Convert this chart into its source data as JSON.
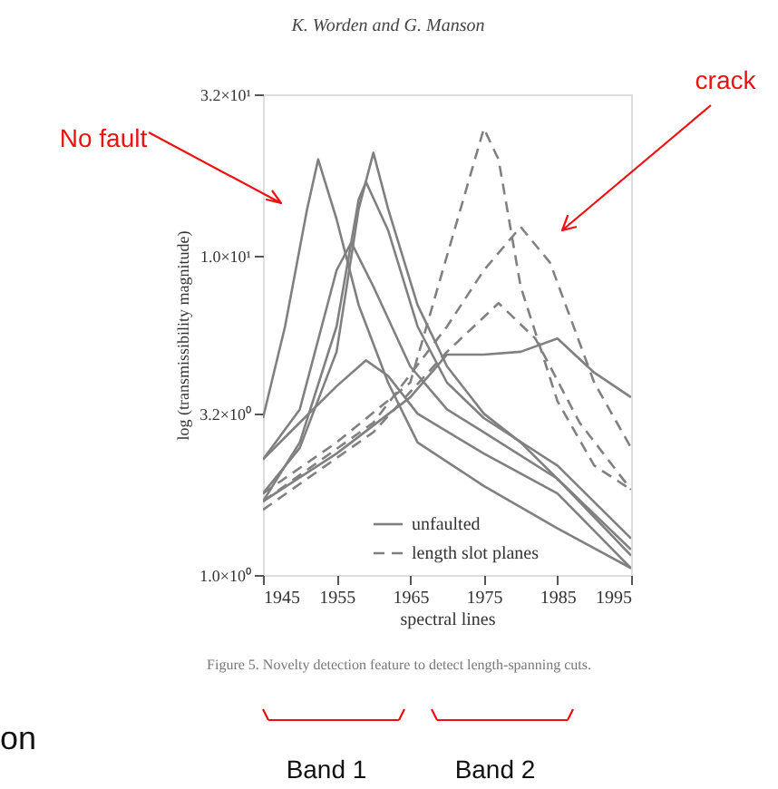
{
  "chart_data": {
    "type": "line",
    "xlabel": "spectral lines",
    "ylabel": "log (transmissibility magnitude)",
    "log": true,
    "xlim": [
      1945,
      1995
    ],
    "xticks": [
      1945,
      1955,
      1965,
      1975,
      1985,
      1995
    ],
    "ylim": [
      1,
      32
    ],
    "yticks": [
      {
        "value": 1,
        "label": "1.0×10⁰"
      },
      {
        "value": 3.2,
        "label": "3.2×10⁰"
      },
      {
        "value": 10,
        "label": "1.0×10¹"
      },
      {
        "value": 32,
        "label": "3.2×10¹"
      }
    ],
    "grid": false,
    "legend": "bottom right",
    "marker": "none",
    "series": [
      {
        "name": "unfaulted",
        "color": "#808080",
        "line_style": "solid",
        "x": [
          1945,
          1948,
          1951,
          1952.5,
          1955,
          1958,
          1962,
          1966,
          1975,
          1985,
          1995
        ],
        "values": [
          3.1,
          6,
          14,
          20,
          13,
          7,
          4,
          2.6,
          1.9,
          1.4,
          1.05
        ]
      },
      {
        "color": "#808080",
        "line_style": "solid",
        "x": [
          1945,
          1950,
          1955,
          1958,
          1960,
          1962,
          1966,
          1970,
          1975,
          1980,
          1985,
          1995
        ],
        "values": [
          1.8,
          2.5,
          5,
          14,
          21,
          14,
          7,
          4.5,
          3.2,
          2.6,
          2,
          1.2
        ]
      },
      {
        "color": "#808080",
        "line_style": "solid",
        "x": [
          1945,
          1950,
          1955,
          1958,
          1959,
          1962,
          1966,
          1970,
          1975,
          1985,
          1995
        ],
        "values": [
          1.7,
          2.6,
          6,
          15,
          17,
          12,
          6,
          4,
          3.1,
          2.2,
          1.3
        ]
      },
      {
        "color": "#808080",
        "line_style": "solid",
        "x": [
          1945,
          1950,
          1955,
          1957,
          1960,
          1965,
          1970,
          1975,
          1985,
          1995
        ],
        "values": [
          2.3,
          3.3,
          9,
          11,
          8,
          4.5,
          3.3,
          2.8,
          2,
          1.15
        ]
      },
      {
        "color": "#808080",
        "line_style": "solid",
        "x": [
          1945,
          1950,
          1955,
          1959,
          1962,
          1966,
          1975,
          1985,
          1995
        ],
        "values": [
          2.3,
          3,
          3.9,
          4.7,
          4.2,
          3.2,
          2.4,
          1.8,
          1.05
        ]
      },
      {
        "color": "#808080",
        "line_style": "solid",
        "x": [
          1945,
          1955,
          1965,
          1970,
          1975,
          1980,
          1985,
          1990,
          1995
        ],
        "values": [
          1.7,
          2.4,
          3.6,
          4.9,
          4.9,
          5,
          5.5,
          4.3,
          3.6
        ]
      },
      {
        "name": "length slot planes",
        "color": "#808080",
        "line_style": "dashed",
        "x": [
          1945,
          1955,
          1965,
          1970,
          1975,
          1977,
          1980,
          1985,
          1990,
          1995
        ],
        "values": [
          1.8,
          2.6,
          4,
          10,
          25,
          20,
          8,
          3.5,
          2.2,
          1.85
        ]
      },
      {
        "color": "#808080",
        "line_style": "dashed",
        "x": [
          1945,
          1960,
          1970,
          1975,
          1980,
          1984,
          1990,
          1995
        ],
        "values": [
          1.7,
          3,
          6,
          9,
          12.3,
          9.5,
          4,
          2.5
        ]
      },
      {
        "color": "#808080",
        "line_style": "dashed",
        "x": [
          1945,
          1960,
          1970,
          1977,
          1982,
          1988,
          1995
        ],
        "values": [
          1.6,
          2.8,
          5,
          7.1,
          5.5,
          3,
          1.85
        ]
      }
    ],
    "annotations": [
      "K. Worden and G. Manson",
      "Figure 5. Novelty detection feature to detect length-spanning cuts.",
      "No fault",
      "crack",
      "Band 1",
      "Band 2",
      "on"
    ]
  }
}
